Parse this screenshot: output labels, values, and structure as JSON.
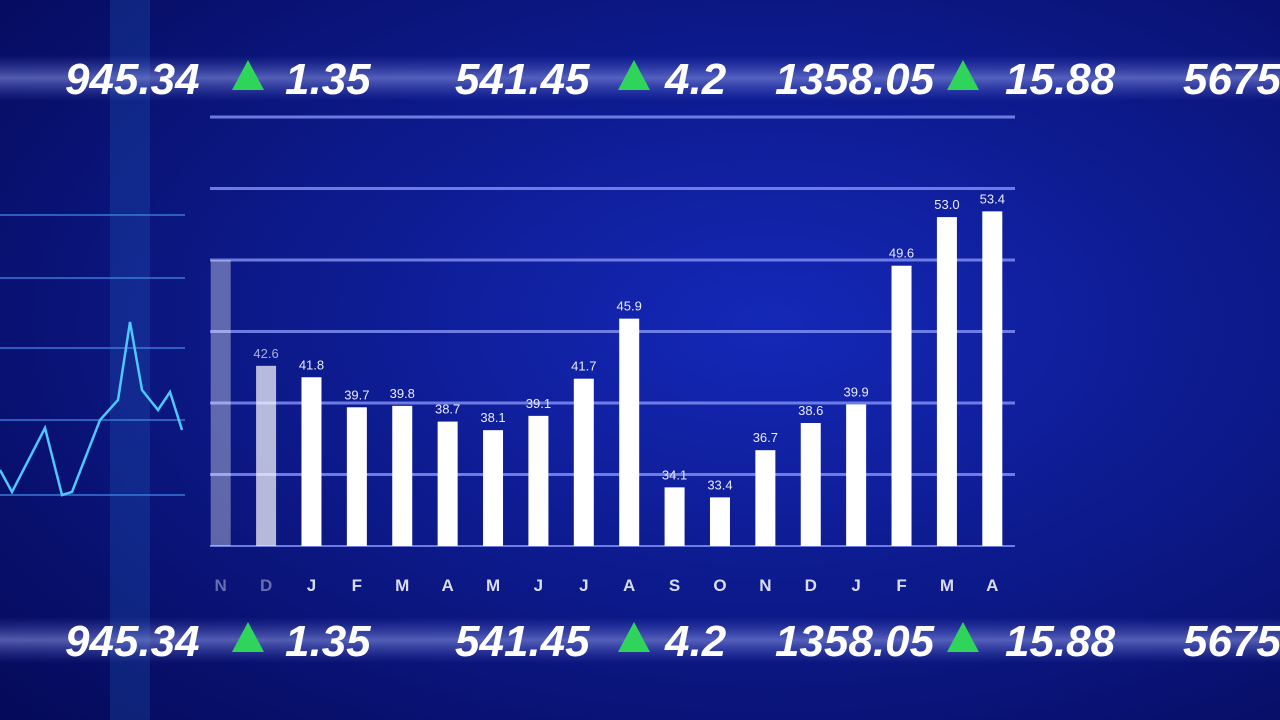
{
  "chart_data": {
    "type": "bar",
    "categories": [
      "N",
      "D",
      "J",
      "F",
      "M",
      "A",
      "M",
      "J",
      "J",
      "A",
      "S",
      "O",
      "N",
      "D",
      "J",
      "F",
      "M",
      "A"
    ],
    "values": [
      50.0,
      42.6,
      41.8,
      39.7,
      39.8,
      38.7,
      38.1,
      39.1,
      41.7,
      45.9,
      34.1,
      33.4,
      36.7,
      38.6,
      39.9,
      49.6,
      53.0,
      53.4
    ],
    "value_labels": [
      null,
      "42.6",
      "41.8",
      "39.7",
      "39.8",
      "38.7",
      "38.1",
      "39.1",
      "41.7",
      "45.9",
      "34.1",
      "33.4",
      "36.7",
      "38.6",
      "39.9",
      "49.6",
      "53.0",
      "53.4"
    ],
    "color": "#ffffff",
    "ylim": [
      30,
      60
    ],
    "yticks": [
      30,
      35,
      40,
      45,
      50,
      55,
      60
    ],
    "grid": true
  },
  "tickers": [
    {
      "items": [
        {
          "price": "945.34",
          "change": "1.35"
        },
        {
          "price": "541.45",
          "change": "4.2"
        },
        {
          "price": "1358.05",
          "change": "15.88"
        },
        {
          "price": "5675",
          "change": null
        }
      ]
    },
    {
      "items": [
        {
          "price": "945.34",
          "change": "1.35"
        },
        {
          "price": "541.45",
          "change": "4.2"
        },
        {
          "price": "1358.05",
          "change": "15.88"
        },
        {
          "price": "5675",
          "change": null
        }
      ]
    }
  ]
}
